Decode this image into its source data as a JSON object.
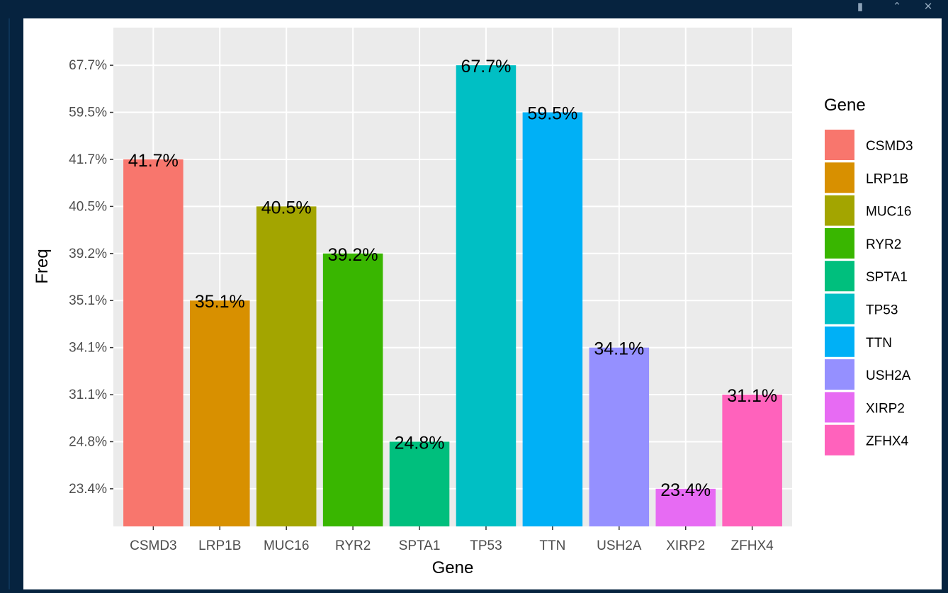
{
  "window": {
    "icons": [
      "sidebar-toggle-icon",
      "collapse-up-icon",
      "close-icon"
    ]
  },
  "chart_data": {
    "type": "bar",
    "xlabel": "Gene",
    "ylabel": "Freq",
    "categories": [
      "CSMD3",
      "LRP1B",
      "MUC16",
      "RYR2",
      "SPTA1",
      "TP53",
      "TTN",
      "USH2A",
      "XIRP2",
      "ZFHX4"
    ],
    "values": [
      41.7,
      35.1,
      40.5,
      39.2,
      24.8,
      67.7,
      59.5,
      34.1,
      23.4,
      31.1
    ],
    "data_labels": [
      "41.7%",
      "35.1%",
      "40.5%",
      "39.2%",
      "24.8%",
      "67.7%",
      "59.5%",
      "34.1%",
      "23.4%",
      "31.1%"
    ],
    "y_axis_type": "categorical (discrete levels, ascending)",
    "y_tick_labels": [
      "23.4%",
      "24.8%",
      "31.1%",
      "34.1%",
      "35.1%",
      "39.2%",
      "40.5%",
      "41.7%",
      "59.5%",
      "67.7%"
    ],
    "grid": true,
    "legend": {
      "title": "Gene",
      "placement": "right",
      "entries": [
        "CSMD3",
        "LRP1B",
        "MUC16",
        "RYR2",
        "SPTA1",
        "TP53",
        "TTN",
        "USH2A",
        "XIRP2",
        "ZFHX4"
      ]
    },
    "colors": [
      "#F8766D",
      "#D89000",
      "#A3A500",
      "#39B600",
      "#00BF7D",
      "#00BFC4",
      "#00B0F6",
      "#9590FF",
      "#E76BF3",
      "#FF62BC"
    ],
    "panel_background": "#EBEBEB"
  }
}
